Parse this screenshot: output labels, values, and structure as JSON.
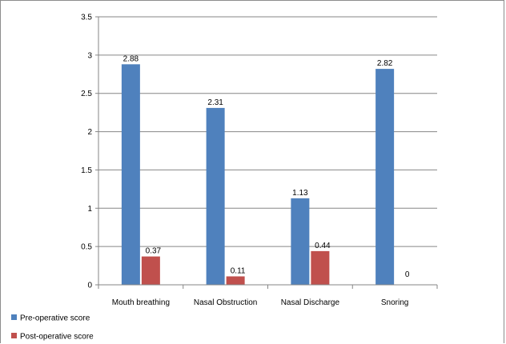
{
  "chart_data": {
    "type": "bar",
    "categories": [
      "Mouth breathing",
      "Nasal Obstruction",
      "Nasal Discharge",
      "Snoring"
    ],
    "series": [
      {
        "name": "Pre-operative score",
        "values": [
          2.88,
          2.31,
          1.13,
          2.82
        ],
        "labels": [
          "2.88",
          "2.31",
          "1.13",
          "2.82"
        ],
        "color": "#4f81bd"
      },
      {
        "name": "Post-operative score",
        "values": [
          0.37,
          0.11,
          0.44,
          0
        ],
        "labels": [
          "0.37",
          "0.11",
          "0.44",
          "0"
        ],
        "color": "#c0504d"
      }
    ],
    "ylim": [
      0,
      3.5
    ],
    "yticks": [
      "0",
      "0.5",
      "1",
      "1.5",
      "2",
      "2.5",
      "3",
      "3.5"
    ],
    "grid": true,
    "legend": "bottom-left",
    "title": "",
    "xlabel": "",
    "ylabel": ""
  }
}
